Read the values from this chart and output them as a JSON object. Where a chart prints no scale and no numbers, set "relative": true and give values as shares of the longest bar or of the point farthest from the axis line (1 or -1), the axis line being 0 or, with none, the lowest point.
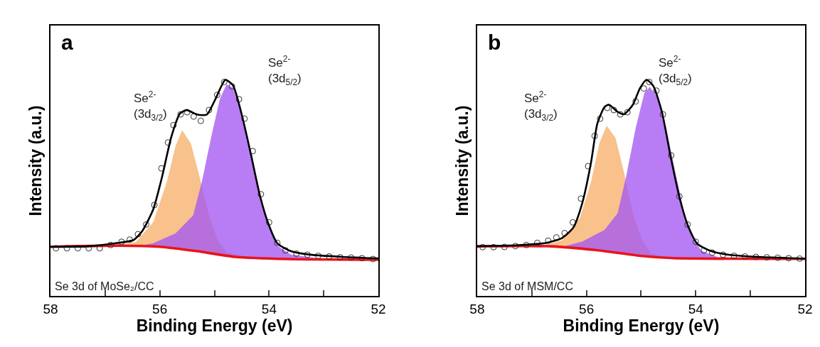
{
  "chart_data": [
    {
      "type": "line",
      "relative": true,
      "xlabel": "Binding Energy (eV)",
      "ylabel": "Intensity (a.u.)",
      "xlim": [
        58,
        52
      ],
      "xticks": [
        58,
        {
          "value": 57,
          "label": null
        },
        56,
        {
          "value": 55,
          "label": null
        },
        54,
        {
          "value": 53,
          "label": null
        },
        52
      ],
      "legend": false,
      "annotations": [
        "a",
        "Se 3d of MoSe₂/CC",
        "Se$^{2-}$\n(3d$_{3/2}$)",
        "Se$^{2-}$\n(3d$_{5/2}$)"
      ],
      "series": [
        {
          "type": "area",
          "color": "#f7b06a",
          "x": [
            56.9,
            56.44,
            56.12,
            55.87,
            55.71,
            55.59,
            55.43,
            55.27,
            55.1,
            54.94,
            54.78,
            54.5,
            54.09
          ],
          "values": [
            0.232,
            0.248,
            0.341,
            0.528,
            0.694,
            0.767,
            0.704,
            0.549,
            0.372,
            0.258,
            0.201,
            0.186,
            0.175
          ]
        },
        {
          "type": "area",
          "color": "#a458f2",
          "x": [
            56.4,
            56.12,
            55.71,
            55.39,
            55.23,
            55.06,
            54.9,
            54.78,
            54.66,
            54.5,
            54.33,
            54.17,
            54.01,
            53.85,
            53.6,
            53.07,
            52
          ],
          "values": [
            0.23,
            0.243,
            0.289,
            0.372,
            0.528,
            0.735,
            0.912,
            0.979,
            0.964,
            0.839,
            0.652,
            0.455,
            0.321,
            0.232,
            0.191,
            0.173,
            0.167
          ]
        },
        {
          "color": "#e8141c",
          "line_style": "solid",
          "x": [
            58,
            56.72,
            55.99,
            55.31,
            54.62,
            53.68,
            52
          ],
          "values": [
            0.227,
            0.232,
            0.227,
            0.206,
            0.18,
            0.17,
            0.167
          ]
        },
        {
          "type": "scatter",
          "marker": "circle",
          "color": "#333333",
          "x": [
            57.9,
            57.7,
            57.5,
            57.3,
            57.1,
            56.9,
            56.7,
            56.55,
            56.4,
            56.25,
            56.1,
            55.97,
            55.85,
            55.75,
            55.62,
            55.5,
            55.38,
            55.25,
            55.1,
            54.95,
            54.82,
            54.68,
            54.55,
            54.45,
            54.3,
            54.15,
            54.0,
            53.85,
            53.7,
            53.5,
            53.3,
            53.1,
            52.9,
            52.7,
            52.5,
            52.3,
            52.1
          ],
          "values": [
            0.22,
            0.22,
            0.22,
            0.22,
            0.22,
            0.235,
            0.25,
            0.26,
            0.285,
            0.33,
            0.42,
            0.59,
            0.71,
            0.79,
            0.84,
            0.85,
            0.83,
            0.81,
            0.86,
            0.93,
            0.99,
            0.97,
            0.91,
            0.82,
            0.67,
            0.47,
            0.34,
            0.245,
            0.21,
            0.195,
            0.19,
            0.185,
            0.182,
            0.178,
            0.177,
            0.174,
            0.17
          ]
        },
        {
          "color": "#000000",
          "line_style": "solid",
          "x": [
            58,
            57.33,
            56.81,
            56.48,
            56.32,
            56.12,
            55.96,
            55.79,
            55.63,
            55.51,
            55.31,
            55.14,
            54.98,
            54.8,
            54.66,
            54.5,
            54.33,
            54.17,
            54.01,
            53.85,
            53.6,
            53.28,
            52.67,
            52
          ],
          "values": [
            0.227,
            0.229,
            0.243,
            0.258,
            0.3,
            0.4,
            0.549,
            0.735,
            0.844,
            0.86,
            0.839,
            0.839,
            0.912,
            1.0,
            0.974,
            0.839,
            0.652,
            0.466,
            0.331,
            0.243,
            0.206,
            0.191,
            0.18,
            0.173
          ]
        }
      ]
    },
    {
      "type": "line",
      "relative": true,
      "xlabel": "Binding Energy (eV)",
      "ylabel": "Intensity (a.u.)",
      "xlim": [
        58,
        52
      ],
      "xticks": [
        58,
        {
          "value": 57,
          "label": null
        },
        56,
        {
          "value": 55,
          "label": null
        },
        54,
        {
          "value": 53,
          "label": null
        },
        52
      ],
      "legend": false,
      "annotations": [
        "b",
        "Se 3d of MSM/CC",
        "Se$^{2-}$\n(3d$_{3/2}$)",
        "Se$^{2-}$\n(3d$_{5/2}$)"
      ],
      "series": [
        {
          "type": "area",
          "color": "#f7b06a",
          "x": [
            56.85,
            56.45,
            56.12,
            55.92,
            55.76,
            55.63,
            55.47,
            55.31,
            55.15,
            54.98,
            54.82,
            54.5,
            54.1
          ],
          "values": [
            0.229,
            0.256,
            0.36,
            0.524,
            0.71,
            0.787,
            0.732,
            0.568,
            0.382,
            0.256,
            0.196,
            0.179,
            0.174
          ]
        },
        {
          "type": "area",
          "color": "#a458f2",
          "x": [
            56.4,
            56.08,
            55.67,
            55.43,
            55.27,
            55.1,
            54.94,
            54.84,
            54.7,
            54.54,
            54.37,
            54.21,
            54.05,
            53.89,
            53.6,
            53.0,
            52
          ],
          "values": [
            0.229,
            0.251,
            0.305,
            0.382,
            0.557,
            0.776,
            0.94,
            0.967,
            0.918,
            0.776,
            0.568,
            0.382,
            0.261,
            0.207,
            0.179,
            0.172,
            0.171
          ]
        },
        {
          "color": "#e8141c",
          "line_style": "solid",
          "x": [
            58,
            56.65,
            55.84,
            55.02,
            54.41,
            52
          ],
          "values": [
            0.229,
            0.229,
            0.212,
            0.185,
            0.174,
            0.171
          ]
        },
        {
          "type": "scatter",
          "marker": "circle",
          "color": "#333333",
          "x": [
            57.9,
            57.7,
            57.5,
            57.3,
            57.1,
            56.9,
            56.7,
            56.55,
            56.4,
            56.25,
            56.1,
            55.97,
            55.85,
            55.75,
            55.62,
            55.5,
            55.38,
            55.25,
            55.1,
            54.95,
            54.85,
            54.72,
            54.6,
            54.45,
            54.3,
            54.15,
            54.0,
            53.85,
            53.7,
            53.5,
            53.3,
            53.1,
            52.9,
            52.7,
            52.5,
            52.3,
            52.1
          ],
          "values": [
            0.225,
            0.225,
            0.226,
            0.23,
            0.235,
            0.245,
            0.255,
            0.27,
            0.29,
            0.34,
            0.45,
            0.6,
            0.74,
            0.82,
            0.87,
            0.86,
            0.84,
            0.85,
            0.9,
            0.96,
            0.99,
            0.95,
            0.84,
            0.65,
            0.46,
            0.33,
            0.25,
            0.21,
            0.2,
            0.19,
            0.185,
            0.182,
            0.18,
            0.178,
            0.176,
            0.174,
            0.172
          ]
        },
        {
          "color": "#000000",
          "line_style": "solid",
          "x": [
            58,
            57.26,
            56.73,
            56.45,
            56.24,
            56.08,
            55.92,
            55.8,
            55.67,
            55.59,
            55.43,
            55.31,
            55.15,
            55.02,
            54.9,
            54.78,
            54.62,
            54.46,
            54.29,
            54.13,
            53.97,
            53.72,
            53.4,
            52.79,
            52
          ],
          "values": [
            0.229,
            0.234,
            0.245,
            0.267,
            0.316,
            0.426,
            0.612,
            0.798,
            0.874,
            0.885,
            0.852,
            0.841,
            0.885,
            0.962,
            1.0,
            0.973,
            0.852,
            0.644,
            0.447,
            0.316,
            0.24,
            0.207,
            0.19,
            0.179,
            0.172
          ]
        }
      ]
    }
  ]
}
